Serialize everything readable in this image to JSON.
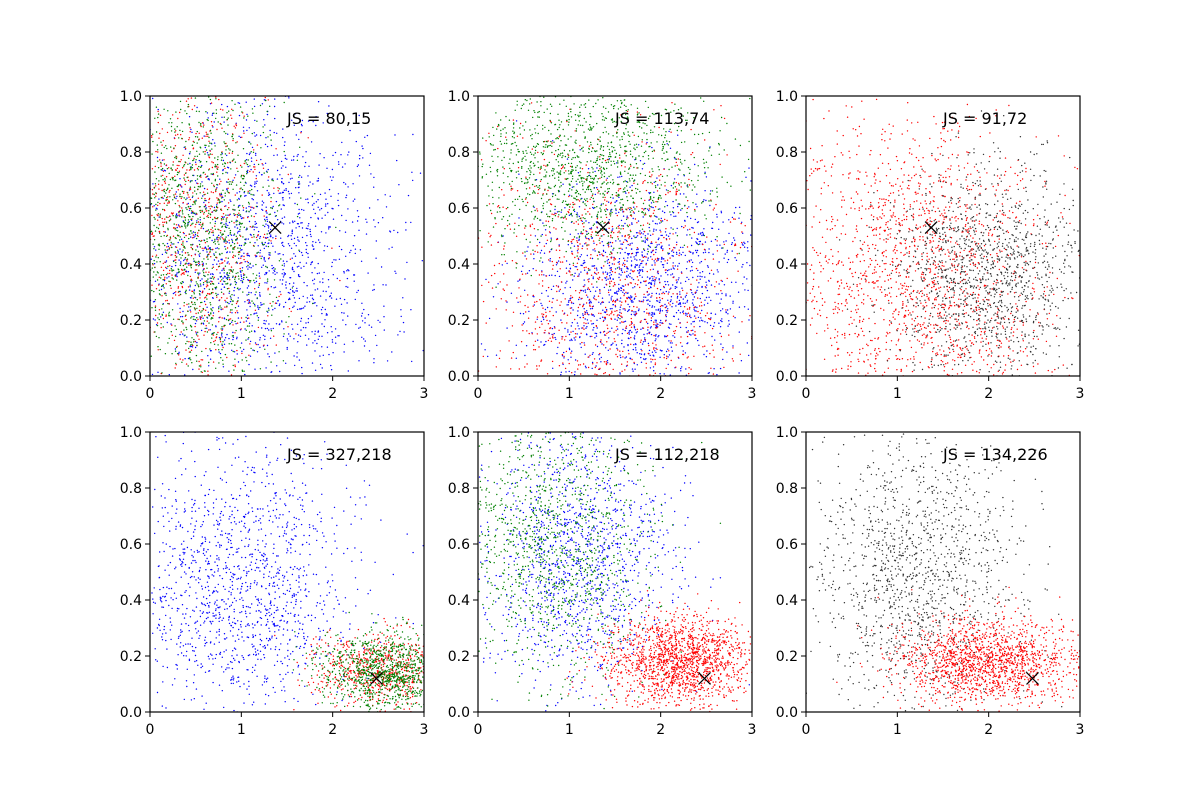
{
  "figure": {
    "layout": "2x3 grid of scatter panels"
  },
  "chart_data": [
    {
      "type": "scatter",
      "annotation": "JS = 80,15",
      "xlim": [
        0,
        3
      ],
      "ylim": [
        0,
        1
      ],
      "xticks": [
        "0",
        "1",
        "2",
        "3"
      ],
      "yticks": [
        "0.0",
        "0.2",
        "0.4",
        "0.6",
        "0.8",
        "1.0"
      ],
      "grid": false,
      "marker_x": [
        1.37,
        0.53
      ],
      "series": [
        {
          "color": "#0000ff",
          "count": 1400,
          "x_mean": 1.2,
          "x_sd": 0.75,
          "y_mean": 0.42,
          "y_sd": 0.28
        },
        {
          "color": "#ff0000",
          "count": 700,
          "x_mean": 0.5,
          "x_sd": 0.45,
          "y_mean": 0.5,
          "y_sd": 0.3
        },
        {
          "color": "#008000",
          "count": 1100,
          "x_mean": 0.55,
          "x_sd": 0.45,
          "y_mean": 0.5,
          "y_sd": 0.3
        }
      ]
    },
    {
      "type": "scatter",
      "annotation": "JS = 113,74",
      "xlim": [
        0,
        3
      ],
      "ylim": [
        0,
        1
      ],
      "xticks": [
        "0",
        "1",
        "2",
        "3"
      ],
      "yticks": [
        "0.0",
        "0.2",
        "0.4",
        "0.6",
        "0.8",
        "1.0"
      ],
      "grid": false,
      "marker_x": [
        1.37,
        0.53
      ],
      "series": [
        {
          "color": "#0000ff",
          "count": 1400,
          "x_mean": 1.8,
          "x_sd": 0.65,
          "y_mean": 0.32,
          "y_sd": 0.2
        },
        {
          "color": "#ff0000",
          "count": 1000,
          "x_mean": 1.4,
          "x_sd": 0.8,
          "y_mean": 0.3,
          "y_sd": 0.3
        },
        {
          "color": "#008000",
          "count": 1200,
          "x_mean": 1.2,
          "x_sd": 0.7,
          "y_mean": 0.75,
          "y_sd": 0.15
        }
      ]
    },
    {
      "type": "scatter",
      "annotation": "JS = 91,72",
      "xlim": [
        0,
        3
      ],
      "ylim": [
        0,
        1
      ],
      "xticks": [
        "0",
        "1",
        "2",
        "3"
      ],
      "yticks": [
        "0.0",
        "0.2",
        "0.4",
        "0.6",
        "0.8",
        "1.0"
      ],
      "grid": false,
      "marker_x": [
        1.37,
        0.53
      ],
      "series": [
        {
          "color": "#ff0000",
          "count": 1500,
          "x_mean": 1.2,
          "x_sd": 0.8,
          "y_mean": 0.35,
          "y_sd": 0.3
        },
        {
          "color": "#333333",
          "count": 1300,
          "x_mean": 2.0,
          "x_sd": 0.55,
          "y_mean": 0.35,
          "y_sd": 0.2
        }
      ]
    },
    {
      "type": "scatter",
      "annotation": "JS = 327,218",
      "xlim": [
        0,
        3
      ],
      "ylim": [
        0,
        1
      ],
      "xticks": [
        "0",
        "1",
        "2",
        "3"
      ],
      "yticks": [
        "0.0",
        "0.2",
        "0.4",
        "0.6",
        "0.8",
        "1.0"
      ],
      "grid": false,
      "marker_x": [
        2.48,
        0.12
      ],
      "series": [
        {
          "color": "#0000ff",
          "count": 1300,
          "x_mean": 1.0,
          "x_sd": 0.6,
          "y_mean": 0.45,
          "y_sd": 0.25
        },
        {
          "color": "#ff0000",
          "count": 600,
          "x_mean": 2.5,
          "x_sd": 0.35,
          "y_mean": 0.15,
          "y_sd": 0.07
        },
        {
          "color": "#008000",
          "count": 900,
          "x_mean": 2.6,
          "x_sd": 0.35,
          "y_mean": 0.15,
          "y_sd": 0.07
        }
      ]
    },
    {
      "type": "scatter",
      "annotation": "JS = 112,218",
      "xlim": [
        0,
        3
      ],
      "ylim": [
        0,
        1
      ],
      "xticks": [
        "0",
        "1",
        "2",
        "3"
      ],
      "yticks": [
        "0.0",
        "0.2",
        "0.4",
        "0.6",
        "0.8",
        "1.0"
      ],
      "grid": false,
      "marker_x": [
        2.48,
        0.12
      ],
      "series": [
        {
          "color": "#0000ff",
          "count": 1200,
          "x_mean": 1.1,
          "x_sd": 0.55,
          "y_mean": 0.55,
          "y_sd": 0.22
        },
        {
          "color": "#008000",
          "count": 1100,
          "x_mean": 0.8,
          "x_sd": 0.55,
          "y_mean": 0.6,
          "y_sd": 0.25
        },
        {
          "color": "#ff0000",
          "count": 1500,
          "x_mean": 2.2,
          "x_sd": 0.4,
          "y_mean": 0.18,
          "y_sd": 0.08
        }
      ]
    },
    {
      "type": "scatter",
      "annotation": "JS = 134,226",
      "xlim": [
        0,
        3
      ],
      "ylim": [
        0,
        1
      ],
      "xticks": [
        "0",
        "1",
        "2",
        "3"
      ],
      "yticks": [
        "0.0",
        "0.2",
        "0.4",
        "0.6",
        "0.8",
        "1.0"
      ],
      "grid": false,
      "marker_x": [
        2.48,
        0.12
      ],
      "series": [
        {
          "color": "#333333",
          "count": 1300,
          "x_mean": 1.2,
          "x_sd": 0.55,
          "y_mean": 0.5,
          "y_sd": 0.25
        },
        {
          "color": "#ff0000",
          "count": 1500,
          "x_mean": 2.0,
          "x_sd": 0.5,
          "y_mean": 0.18,
          "y_sd": 0.08
        }
      ]
    }
  ]
}
